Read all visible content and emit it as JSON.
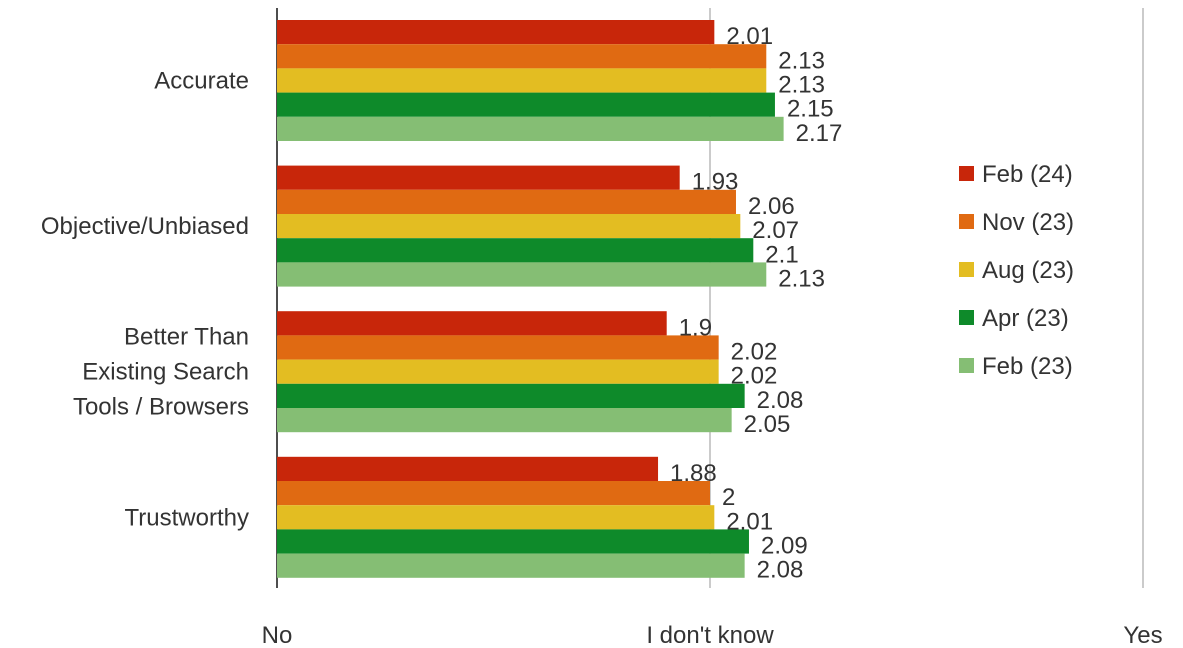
{
  "chart_data": {
    "type": "bar",
    "orientation": "horizontal",
    "categories": [
      "Accurate",
      "Objective/Unbiased",
      "Better Than\nExisting Search\nTools / Browsers",
      "Trustworthy"
    ],
    "series": [
      {
        "name": "Feb (24)",
        "color": "#c8260a",
        "values": [
          2.01,
          1.93,
          1.9,
          1.88
        ]
      },
      {
        "name": "Nov (23)",
        "color": "#e06a12",
        "values": [
          2.13,
          2.06,
          2.02,
          2
        ]
      },
      {
        "name": "Aug (23)",
        "color": "#e3bd22",
        "values": [
          2.13,
          2.07,
          2.02,
          2.01
        ]
      },
      {
        "name": "Apr (23)",
        "color": "#0e8a2a",
        "values": [
          2.15,
          2.1,
          2.08,
          2.09
        ]
      },
      {
        "name": "Feb (23)",
        "color": "#85be74",
        "values": [
          2.17,
          2.13,
          2.05,
          2.08
        ]
      }
    ],
    "xlim": [
      1,
      3
    ],
    "x_ticks": [
      {
        "value": 1,
        "label": "No"
      },
      {
        "value": 2,
        "label": "I don't know"
      },
      {
        "value": 3,
        "label": "Yes"
      }
    ],
    "gridlines": "vertical at ticks",
    "legend_position": "right"
  }
}
